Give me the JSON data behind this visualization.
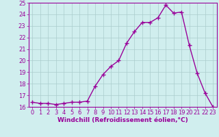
{
  "x": [
    0,
    1,
    2,
    3,
    4,
    5,
    6,
    7,
    8,
    9,
    10,
    11,
    12,
    13,
    14,
    15,
    16,
    17,
    18,
    19,
    20,
    21,
    22,
    23
  ],
  "y": [
    16.4,
    16.3,
    16.3,
    16.2,
    16.3,
    16.4,
    16.4,
    16.5,
    17.8,
    18.8,
    19.5,
    20.0,
    21.5,
    22.5,
    23.3,
    23.3,
    23.7,
    24.8,
    24.1,
    24.2,
    21.3,
    18.9,
    17.2,
    16.0
  ],
  "line_color": "#990099",
  "marker": "+",
  "marker_size": 4,
  "bg_color": "#d0eeee",
  "grid_color": "#aacccc",
  "xlabel": "Windchill (Refroidissement éolien,°C)",
  "xlabel_color": "#990099",
  "tick_color": "#990099",
  "ylim": [
    16,
    25
  ],
  "xlim": [
    -0.5,
    23.5
  ],
  "yticks": [
    16,
    17,
    18,
    19,
    20,
    21,
    22,
    23,
    24,
    25
  ],
  "xticks": [
    0,
    1,
    2,
    3,
    4,
    5,
    6,
    7,
    8,
    9,
    10,
    11,
    12,
    13,
    14,
    15,
    16,
    17,
    18,
    19,
    20,
    21,
    22,
    23
  ],
  "spine_color": "#990099",
  "line_width": 1.0,
  "tick_fontsize": 6.0,
  "xlabel_fontsize": 6.5
}
